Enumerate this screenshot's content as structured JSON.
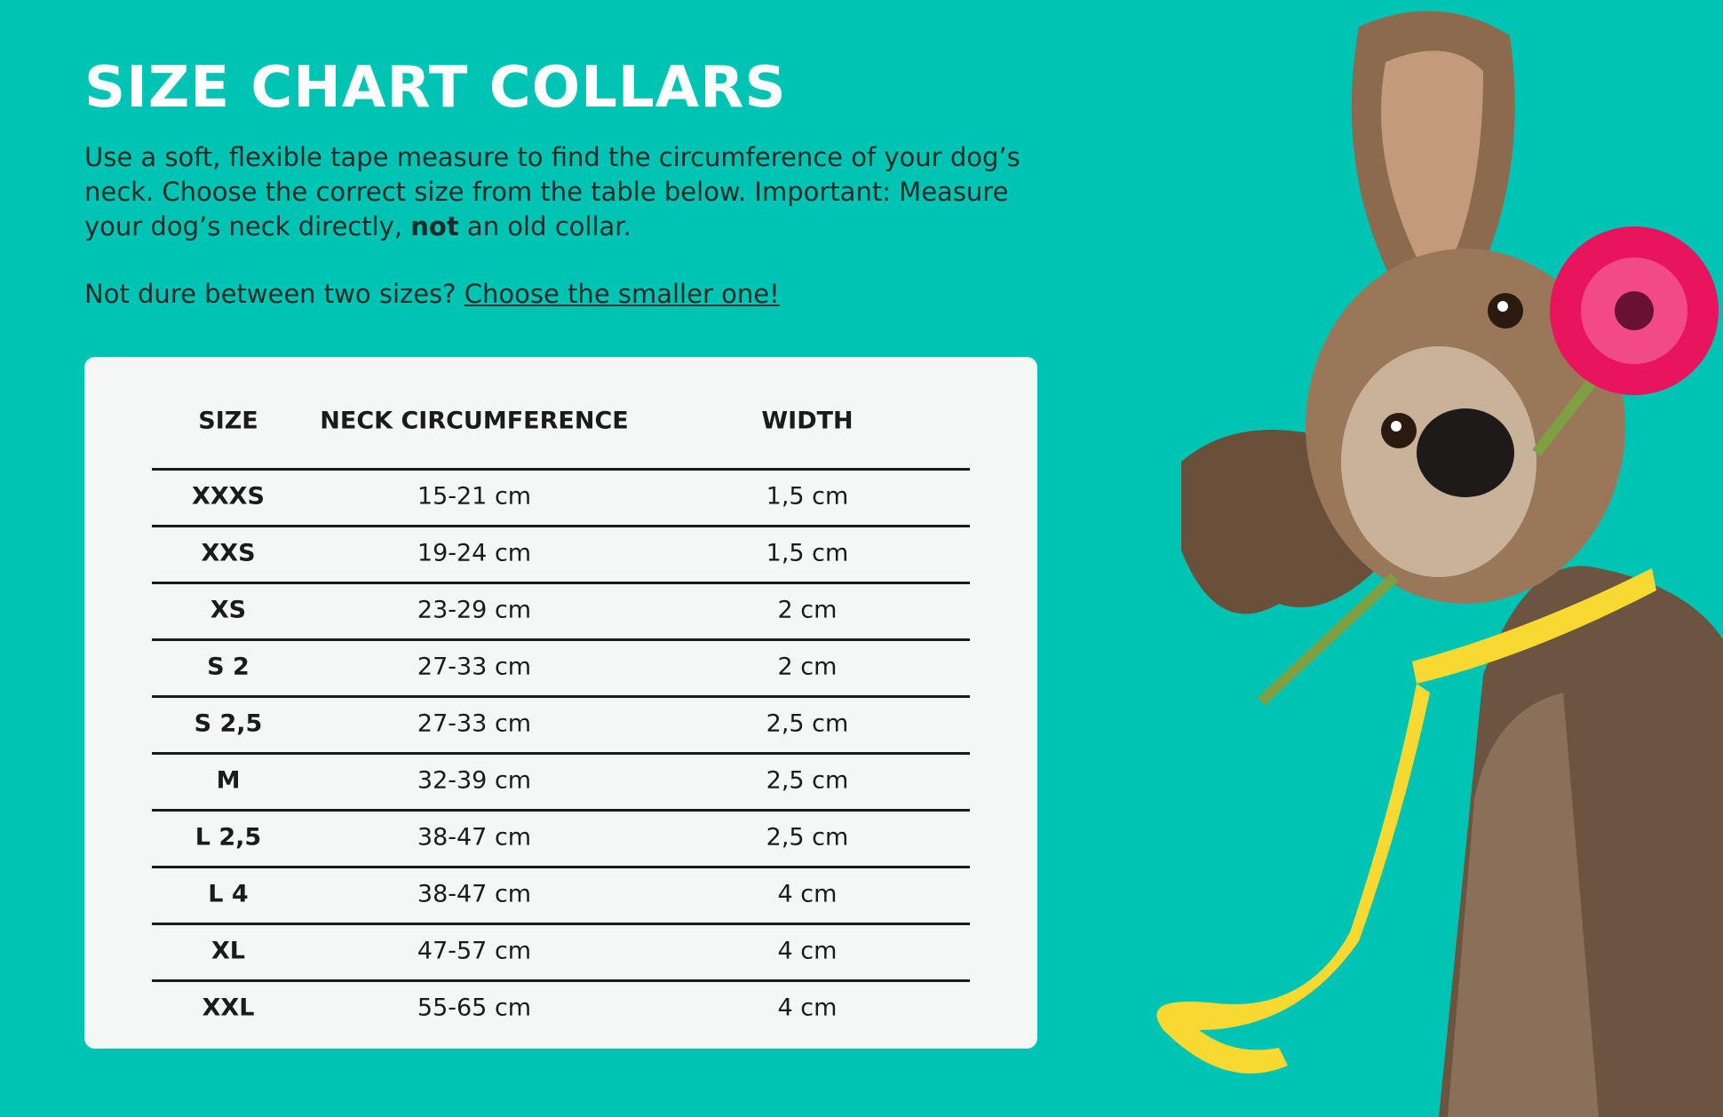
{
  "header": {
    "title": "Size chart collars"
  },
  "intro": {
    "before": "Use a soft, flexible tape measure to find the circumference of your dog’s neck. Choose the correct size from the table below. Important: Measure your dog’s neck directly, ",
    "bold": "not",
    "after": " an old collar."
  },
  "tip": {
    "text": "Not dure between two sizes? ",
    "link": "Choose the smaller one!"
  },
  "table": {
    "headers": [
      "SIZE",
      "NECK CIRCUMFERENCE",
      "WIDTH"
    ],
    "rows": [
      [
        "XXXS",
        "15-21 cm",
        "1,5 cm"
      ],
      [
        "XXS",
        "19-24 cm",
        "1,5 cm"
      ],
      [
        "XS",
        "23-29 cm",
        "2 cm"
      ],
      [
        "S 2",
        "27-33 cm",
        "2 cm"
      ],
      [
        "S 2,5",
        "27-33 cm",
        "2,5 cm"
      ],
      [
        "M",
        "32-39 cm",
        "2,5 cm"
      ],
      [
        "L 2,5",
        "38-47 cm",
        "2,5 cm"
      ],
      [
        "L 4",
        "38-47 cm",
        "4 cm"
      ],
      [
        "XL",
        "47-57 cm",
        "4 cm"
      ],
      [
        "XXL",
        "55-65 cm",
        "4 cm"
      ]
    ]
  }
}
